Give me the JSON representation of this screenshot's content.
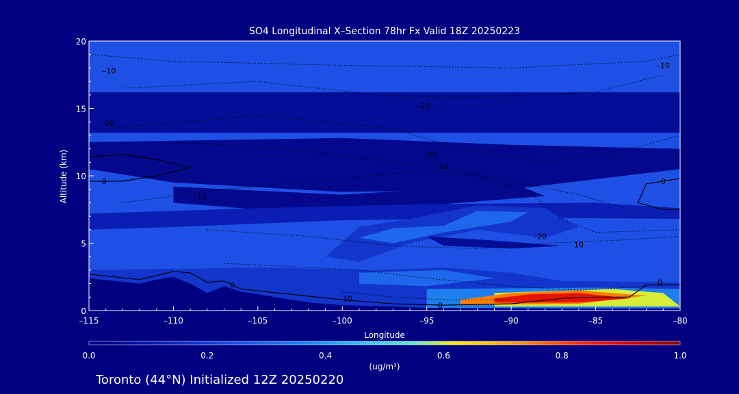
{
  "chart_data": {
    "type": "heatmap",
    "title": "SO4 Longitudinal X–Section 78hr  Fx Valid 18Z 20250223",
    "xlabel": "Longitude",
    "ylabel": "Altitude (km)",
    "xlim": [
      -115,
      -80
    ],
    "ylim": [
      0,
      20
    ],
    "x_ticks": [
      -115,
      -110,
      -105,
      -100,
      -95,
      -90,
      -85,
      -80
    ],
    "x_tick_labels": [
      "–115",
      "–110",
      "–105",
      "–100",
      "–95",
      "–90",
      "–85",
      "–80"
    ],
    "y_ticks": [
      0,
      5,
      10,
      15,
      20
    ],
    "y_tick_labels": [
      "0",
      "5",
      "10",
      "15",
      "20"
    ],
    "colorbar": {
      "min": 0.0,
      "max": 1.0,
      "tick_labels": [
        "0.0",
        "0.2",
        "0.4",
        "0.6",
        "0.8",
        "1.0"
      ],
      "label": "(ug/m³)"
    },
    "colors": {
      "background": "#000080",
      "field_base": "#1e50e6",
      "deep": "#143cc8",
      "mid": "#1e78f0",
      "light": "#3cb4f0",
      "cyan": "#5adcff",
      "yellow": "#ffe600",
      "orange": "#ff7800",
      "red": "#e60000",
      "darkred": "#a00000"
    },
    "concentration_regions": [
      {
        "level": 0.05,
        "points": [
          [
            -115,
            16.2
          ],
          [
            -80,
            16.2
          ],
          [
            -80,
            13.2
          ],
          [
            -115,
            13.2
          ]
        ]
      },
      {
        "level": 0.03,
        "points": [
          [
            -115,
            12.5
          ],
          [
            -100,
            12.8
          ],
          [
            -90,
            12.3
          ],
          [
            -80,
            12.0
          ],
          [
            -80,
            10.5
          ],
          [
            -90,
            9.0
          ],
          [
            -100,
            8.8
          ],
          [
            -110,
            9.5
          ],
          [
            -115,
            10.5
          ]
        ]
      },
      {
        "level": 0.03,
        "points": [
          [
            -110,
            9.2
          ],
          [
            -100,
            8.6
          ],
          [
            -95,
            9.0
          ],
          [
            -90,
            9.5
          ],
          [
            -88,
            8.5
          ],
          [
            -95,
            7.8
          ],
          [
            -105,
            7.5
          ],
          [
            -110,
            8.0
          ]
        ]
      },
      {
        "level": 0.12,
        "points": [
          [
            -115,
            7.2
          ],
          [
            -105,
            7.6
          ],
          [
            -95,
            7.9
          ],
          [
            -85,
            8.0
          ],
          [
            -80,
            7.6
          ],
          [
            -80,
            6.8
          ],
          [
            -90,
            6.9
          ],
          [
            -100,
            6.7
          ],
          [
            -110,
            6.2
          ],
          [
            -115,
            6.0
          ]
        ]
      },
      {
        "level": 0.18,
        "points": [
          [
            -101,
            4.0
          ],
          [
            -99,
            6.2
          ],
          [
            -96,
            6.8
          ],
          [
            -92,
            7.8
          ],
          [
            -88,
            7.6
          ],
          [
            -86,
            6.2
          ],
          [
            -88,
            5.4
          ],
          [
            -92,
            6.0
          ],
          [
            -96,
            5.0
          ],
          [
            -99,
            3.6
          ]
        ]
      },
      {
        "level": 0.3,
        "points": [
          [
            -99,
            5.4
          ],
          [
            -97,
            6.1
          ],
          [
            -94,
            6.3
          ],
          [
            -92,
            7.4
          ],
          [
            -89,
            7.3
          ],
          [
            -90,
            6.6
          ],
          [
            -94,
            5.8
          ],
          [
            -97,
            5.0
          ]
        ]
      },
      {
        "level": 0.05,
        "points": [
          [
            -95,
            5.5
          ],
          [
            -91,
            5.2
          ],
          [
            -87,
            4.8
          ],
          [
            -90,
            4.6
          ],
          [
            -94,
            4.8
          ]
        ]
      },
      {
        "level": 0.18,
        "points": [
          [
            -115,
            3.0
          ],
          [
            -105,
            3.2
          ],
          [
            -98,
            3.0
          ],
          [
            -94,
            3.2
          ],
          [
            -90,
            2.8
          ],
          [
            -87,
            2.2
          ],
          [
            -80,
            2.1
          ],
          [
            -80,
            0.0
          ],
          [
            -115,
            0.0
          ]
        ]
      },
      {
        "level": 0.3,
        "points": [
          [
            -99,
            2.8
          ],
          [
            -94,
            3.0
          ],
          [
            -91,
            2.4
          ],
          [
            -95,
            1.8
          ],
          [
            -99,
            2.0
          ]
        ]
      },
      {
        "level": 0.35,
        "points": [
          [
            -95,
            1.6
          ],
          [
            -85,
            1.7
          ],
          [
            -80,
            1.6
          ],
          [
            -80,
            0.2
          ],
          [
            -95,
            0.2
          ]
        ]
      },
      {
        "level": 0.6,
        "points": [
          [
            -91,
            1.3
          ],
          [
            -84,
            1.6
          ],
          [
            -81,
            1.3
          ],
          [
            -80,
            0.3
          ],
          [
            -91,
            0.3
          ]
        ]
      },
      {
        "level": 0.75,
        "points": [
          [
            -93,
            0.8
          ],
          [
            -90,
            1.3
          ],
          [
            -86,
            1.5
          ],
          [
            -82,
            1.1
          ],
          [
            -86,
            0.5
          ],
          [
            -93,
            0.4
          ]
        ]
      },
      {
        "level": 0.88,
        "points": [
          [
            -91,
            0.9
          ],
          [
            -89,
            1.2
          ],
          [
            -86,
            1.3
          ],
          [
            -83,
            0.9
          ],
          [
            -86,
            0.6
          ],
          [
            -91,
            0.6
          ]
        ]
      }
    ],
    "terrain_profile": [
      [
        -115,
        2.4
      ],
      [
        -112,
        2.0
      ],
      [
        -111,
        2.3
      ],
      [
        -110,
        2.5
      ],
      [
        -109,
        2.0
      ],
      [
        -108,
        1.3
      ],
      [
        -107,
        1.8
      ],
      [
        -106,
        1.4
      ],
      [
        -104,
        1.0
      ],
      [
        -102,
        0.6
      ],
      [
        -100,
        0.4
      ],
      [
        -97,
        0.3
      ],
      [
        -95,
        0.2
      ],
      [
        -90,
        0.15
      ],
      [
        -85,
        0.1
      ],
      [
        -80,
        0.1
      ]
    ],
    "contours_solid": [
      [
        [
          -115,
          11.4
        ],
        [
          -113,
          11.6
        ],
        [
          -111,
          11.2
        ],
        [
          -109,
          10.6
        ],
        [
          -111,
          10.0
        ],
        [
          -113,
          9.6
        ],
        [
          -115,
          9.6
        ]
      ],
      [
        [
          -115,
          2.7
        ],
        [
          -112,
          2.3
        ],
        [
          -110,
          2.9
        ],
        [
          -109,
          2.8
        ],
        [
          -108,
          2.1
        ],
        [
          -107,
          2.2
        ],
        [
          -106,
          1.6
        ],
        [
          -103,
          1.2
        ],
        [
          -100,
          0.8
        ],
        [
          -97,
          0.5
        ],
        [
          -94,
          0.4
        ],
        [
          -90,
          0.5
        ],
        [
          -87,
          0.9
        ],
        [
          -85,
          1.0
        ],
        [
          -83,
          1.0
        ],
        [
          -82,
          1.9
        ],
        [
          -80,
          1.9
        ]
      ],
      [
        [
          -80,
          9.8
        ],
        [
          -82,
          9.4
        ],
        [
          -82.5,
          8.0
        ],
        [
          -81,
          7.5
        ],
        [
          -80,
          7.5
        ]
      ]
    ],
    "contours_dotted": [
      [
        [
          -115,
          19.0
        ],
        [
          -110,
          18.5
        ],
        [
          -100,
          18.2
        ],
        [
          -90,
          18.0
        ],
        [
          -82,
          18.5
        ],
        [
          -80,
          19.0
        ]
      ],
      [
        [
          -113,
          16.5
        ],
        [
          -105,
          17.0
        ],
        [
          -98,
          16.0
        ],
        [
          -93,
          15.8
        ],
        [
          -85,
          16.2
        ],
        [
          -81,
          17.5
        ]
      ],
      [
        [
          -114,
          13.5
        ],
        [
          -105,
          14.5
        ],
        [
          -97,
          13.5
        ],
        [
          -93,
          12.0
        ],
        [
          -88,
          11.0
        ],
        [
          -83,
          12.0
        ],
        [
          -80,
          13.0
        ]
      ],
      [
        [
          -110,
          12.5
        ],
        [
          -103,
          12.0
        ],
        [
          -98,
          11.2
        ],
        [
          -94,
          10.6
        ],
        [
          -90,
          9.6
        ],
        [
          -86,
          8.6
        ],
        [
          -83,
          7.5
        ]
      ],
      [
        [
          -113,
          8.0
        ],
        [
          -107,
          9.0
        ],
        [
          -100,
          9.8
        ],
        [
          -95,
          10.4
        ],
        [
          -92,
          10.0
        ],
        [
          -89,
          8.8
        ],
        [
          -87,
          6.8
        ],
        [
          -85,
          5.8
        ],
        [
          -80,
          6.0
        ]
      ],
      [
        [
          -108,
          6.0
        ],
        [
          -102,
          5.5
        ],
        [
          -97,
          4.8
        ],
        [
          -92,
          4.6
        ],
        [
          -88,
          5.0
        ],
        [
          -84,
          5.2
        ],
        [
          -80,
          5.5
        ]
      ],
      [
        [
          -107,
          3.5
        ],
        [
          -102,
          3.2
        ],
        [
          -99,
          3.0
        ],
        [
          -95,
          2.4
        ],
        [
          -90,
          1.8
        ],
        [
          -86,
          1.5
        ],
        [
          -82,
          1.8
        ]
      ],
      [
        [
          -100,
          1.4
        ],
        [
          -97,
          1.0
        ],
        [
          -94,
          0.8
        ],
        [
          -90,
          0.8
        ]
      ]
    ],
    "contour_labels": [
      {
        "text": "–10",
        "x": -113.8,
        "y": 17.8
      },
      {
        "text": "–10",
        "x": -113.9,
        "y": 13.9
      },
      {
        "text": "–20",
        "x": -95.2,
        "y": 15.2
      },
      {
        "text": "–10",
        "x": -81.0,
        "y": 18.2
      },
      {
        "text": "–30",
        "x": -94.8,
        "y": 11.6
      },
      {
        "text": "10",
        "x": -94.0,
        "y": 10.7
      },
      {
        "text": "0",
        "x": -114.1,
        "y": 9.6
      },
      {
        "text": "10",
        "x": -108.3,
        "y": 8.4
      },
      {
        "text": "–20",
        "x": -88.3,
        "y": 5.5
      },
      {
        "text": "10",
        "x": -86.0,
        "y": 4.9
      },
      {
        "text": "0",
        "x": -81.0,
        "y": 9.6
      },
      {
        "text": "0",
        "x": -106.5,
        "y": 1.9
      },
      {
        "text": "–10",
        "x": -99.8,
        "y": 0.9
      },
      {
        "text": "0",
        "x": -94.2,
        "y": 0.4
      },
      {
        "text": "0",
        "x": -81.2,
        "y": 2.1
      }
    ]
  },
  "footer_text": "Toronto (44°N) Initialized 12Z 20250220"
}
